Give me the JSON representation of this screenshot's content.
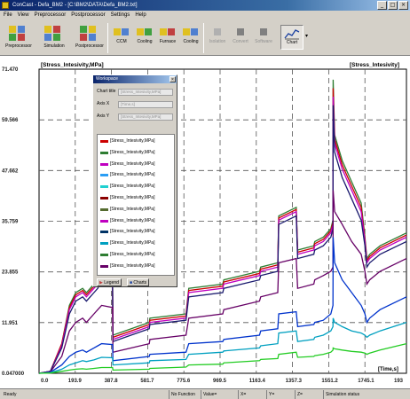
{
  "window": {
    "title": "ConCast - Defa_BM2 - [C:\\BM2\\DATA\\Defa_BM2.txt]"
  },
  "menu": [
    "File",
    "View",
    "Preprocessor",
    "Postprocessor",
    "Settings",
    "Help"
  ],
  "toolbar": {
    "big": [
      {
        "label": "Preprocessor",
        "icon": "preprocessor-icon"
      },
      {
        "label": "Simulation",
        "icon": "simulation-icon"
      },
      {
        "label": "Postprocessor",
        "icon": "postprocessor-icon"
      }
    ],
    "small": [
      {
        "label": "CCM"
      },
      {
        "label": "Cooling"
      },
      {
        "label": "Furnace"
      },
      {
        "label": "Cooling"
      },
      {
        "label": "Isolation"
      },
      {
        "label": "Convert"
      },
      {
        "label": "Software"
      },
      {
        "label": "Chart"
      }
    ]
  },
  "statusbar": {
    "ready": "Ready",
    "function": "No Function",
    "value": "Value=",
    "x": "X=",
    "y": "Y=",
    "z": "Z=",
    "sim": "Simulation status"
  },
  "workspace": {
    "title": "Workspace",
    "chart_title_label": "Chart title",
    "chart_title_value": "[Stress_Intesivity,MPa]",
    "axis_x_label": "Axis X",
    "axis_x_value": "[Time,s]",
    "axis_y_label": "Axis Y",
    "axis_y_value": "[Stress_Intesivity,MPa]",
    "tab_legend": "Legend",
    "tab_charts": "Charts",
    "legend_label": "[Stress_Intesivity,MPa]"
  },
  "chart_data": {
    "type": "line",
    "ylabel": "[Stress_Intesivity,MPa]",
    "title_right": "[Stress_Intesivity]",
    "xlabel": "[Time,s]",
    "xlim": [
      0,
      1939
    ],
    "ylim": [
      0.047,
      71.47
    ],
    "x_ticks": [
      "0.0",
      "193.9",
      "387.8",
      "581.7",
      "775.6",
      "969.5",
      "1163.4",
      "1357.3",
      "1551.2",
      "1745.1",
      "193"
    ],
    "y_ticks": [
      "71.470",
      "59.566",
      "47.662",
      "35.759",
      "23.855",
      "11.951",
      "0.047000"
    ],
    "grid": true,
    "x": [
      0,
      60,
      120,
      160,
      193.9,
      230,
      250,
      290,
      310,
      330,
      387.8,
      390,
      581.7,
      585,
      775.6,
      790,
      969.5,
      975,
      1163.4,
      1170,
      1260,
      1265,
      1357.3,
      1365,
      1450,
      1455,
      1500,
      1540,
      1551.2,
      1552,
      1560,
      1600,
      1650,
      1700,
      1720,
      1730,
      1745.1,
      1800,
      1939
    ],
    "series": [
      {
        "color": "#2e7d32",
        "values": [
          0.05,
          0.5,
          7,
          16,
          19,
          20,
          19,
          21,
          22,
          24,
          23,
          9,
          12,
          13,
          14,
          20,
          21,
          22,
          24,
          25,
          26,
          37,
          39,
          29,
          30,
          31,
          32,
          34,
          36,
          69,
          56,
          50,
          45,
          40,
          32,
          27,
          28,
          30,
          33
        ]
      },
      {
        "color": "#cc0000",
        "values": [
          0.05,
          0.5,
          7,
          15.5,
          18.5,
          19.5,
          18.5,
          20.5,
          21.5,
          23.5,
          22.5,
          8.5,
          11.5,
          12.5,
          13.5,
          19.5,
          20.5,
          21.5,
          23.5,
          24.5,
          25.5,
          36.5,
          38.5,
          28.5,
          29.5,
          30.5,
          31.5,
          33.5,
          35.5,
          67,
          55,
          49,
          44,
          39,
          31.5,
          26.5,
          27.5,
          29.5,
          32.5
        ]
      },
      {
        "color": "#c000c0",
        "values": [
          0.05,
          0.5,
          6.5,
          15,
          18,
          19,
          18,
          20,
          21,
          23,
          22,
          8,
          11,
          12,
          13,
          19,
          20,
          21,
          23,
          24,
          25,
          36,
          38,
          28,
          29,
          30,
          31,
          33,
          35,
          65,
          54,
          48,
          43,
          38,
          31,
          26,
          27,
          29,
          32
        ]
      },
      {
        "color": "#1a1a6e",
        "values": [
          0.05,
          0.5,
          6,
          14,
          17,
          18,
          17,
          19,
          20,
          22,
          21,
          7.5,
          10.5,
          11.5,
          12.5,
          18,
          19,
          20,
          22,
          23,
          24,
          35,
          37,
          27,
          28,
          29,
          30,
          32,
          34,
          63,
          52,
          46,
          41,
          36,
          30,
          25,
          26,
          28,
          31
        ]
      },
      {
        "color": "#660066",
        "values": [
          0.05,
          0.4,
          4,
          10,
          12,
          13,
          12,
          14,
          15,
          16,
          15.5,
          5,
          7,
          8,
          9,
          13,
          14,
          15,
          17,
          18,
          19,
          26,
          27,
          20,
          21,
          22,
          23,
          24,
          25,
          43,
          38,
          35,
          31,
          28,
          24,
          21,
          22,
          24,
          27
        ]
      },
      {
        "color": "#0033cc",
        "values": [
          0.05,
          0.3,
          2,
          4,
          5,
          5.5,
          5,
          6,
          6.5,
          7,
          6.8,
          3,
          4,
          4.5,
          5,
          7,
          7.5,
          8,
          9,
          10,
          10.5,
          14,
          14.5,
          11,
          11.5,
          12,
          12.5,
          14,
          16,
          32,
          26,
          22,
          19,
          16,
          14,
          12,
          13,
          15,
          18
        ]
      },
      {
        "color": "#00a0c0",
        "values": [
          0.05,
          0.2,
          1,
          2,
          2.5,
          3,
          2.8,
          3.2,
          3.5,
          3.8,
          3.7,
          2,
          2.5,
          3,
          3.3,
          4.5,
          5,
          5.3,
          6,
          6.5,
          7,
          9.5,
          10,
          7.5,
          8,
          8.5,
          9,
          10,
          11,
          13,
          12,
          11,
          10,
          9.5,
          9,
          8.5,
          9,
          10,
          12
        ]
      },
      {
        "color": "#22cc22",
        "values": [
          0.05,
          0.1,
          0.5,
          0.8,
          1,
          1.1,
          1,
          1.2,
          1.3,
          1.4,
          1.4,
          0.8,
          1,
          1.2,
          1.5,
          2,
          2.2,
          2.5,
          3,
          3.3,
          3.5,
          4.5,
          5,
          3.8,
          4,
          4.2,
          4.5,
          5,
          5.5,
          6,
          5.8,
          5.5,
          5.2,
          5,
          4.8,
          4.5,
          4.8,
          5.5,
          7
        ]
      }
    ],
    "legend_colors": [
      "#cc0000",
      "#2e7d32",
      "#c000c0",
      "#2a9df4",
      "#20d0d0",
      "#8b0000",
      "#556b2f",
      "#c000c0",
      "#003366",
      "#00a0c0",
      "#2e7d32",
      "#660066"
    ]
  }
}
